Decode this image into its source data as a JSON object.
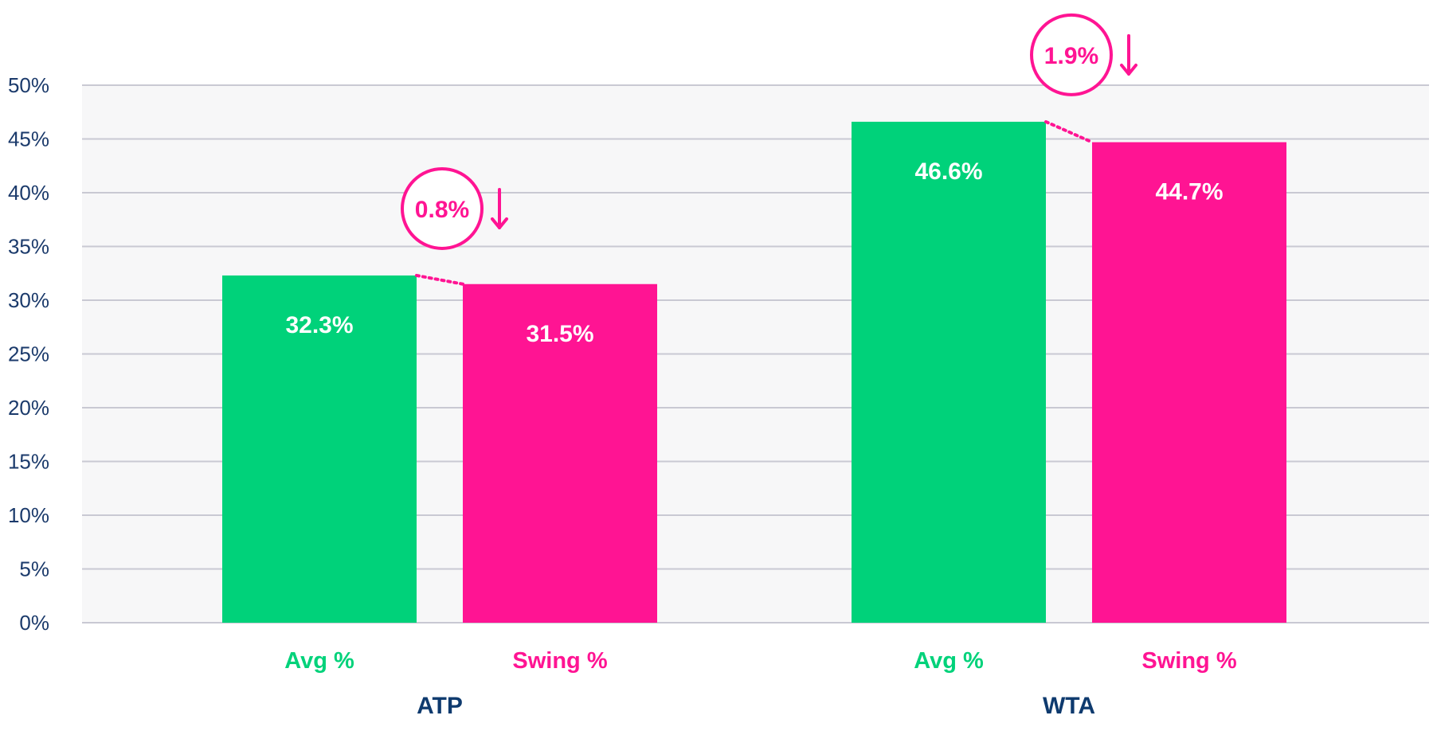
{
  "chart_data": {
    "type": "bar",
    "groups": [
      "ATP",
      "WTA"
    ],
    "series": [
      {
        "name": "Avg %",
        "values": [
          32.3,
          46.6
        ],
        "value_labels": [
          "32.3%",
          "46.6%"
        ],
        "color": "#00d27a"
      },
      {
        "name": "Swing %",
        "values": [
          31.5,
          44.7
        ],
        "value_labels": [
          "31.5%",
          "44.7%"
        ],
        "color": "#ff1493"
      }
    ],
    "annotations": [
      {
        "group": "ATP",
        "label": "0.8%",
        "direction": "down"
      },
      {
        "group": "WTA",
        "label": "1.9%",
        "direction": "down"
      }
    ],
    "y_ticks": [
      0,
      5,
      10,
      15,
      20,
      25,
      30,
      35,
      40,
      45,
      50
    ],
    "y_tick_labels": [
      "0%",
      "5%",
      "10%",
      "15%",
      "20%",
      "25%",
      "30%",
      "35%",
      "40%",
      "45%",
      "50%"
    ],
    "ylim": [
      0,
      50
    ],
    "grid": true,
    "legend": "none",
    "title": "",
    "xlabel": "",
    "ylabel": "",
    "colors": {
      "plot_background": "#f7f7f8",
      "gridline": "#c9c9d3",
      "axis_text": "#1b3a6b",
      "group_label": "#0e3a6e",
      "annotation": "#ff1493",
      "bar_value_text": "#ffffff"
    }
  }
}
